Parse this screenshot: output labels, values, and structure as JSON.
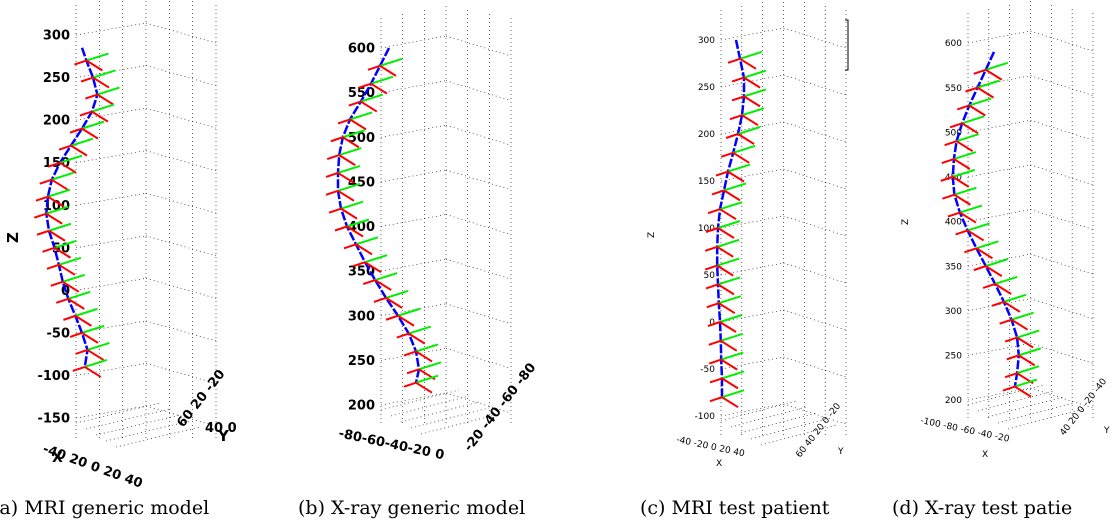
{
  "chart_data": [
    {
      "type": "3d-line",
      "caption": "(a) MRI generic model",
      "zlabel": "Z",
      "xlabel": "X",
      "ylabel": "Y",
      "z_ticks": [
        "300",
        "250",
        "200",
        "150",
        "100",
        "50",
        "0",
        "-50",
        "-100",
        "-150"
      ],
      "zlim": [
        -150,
        300
      ],
      "x_tick_text": "-40 20  0 20 40",
      "y_tick_text": "60 20 -20",
      "y_tick_extra": "40 0",
      "series": {
        "points": [
          {
            "z": 285,
            "d": 0.0
          },
          {
            "z": 270,
            "d": 0.08
          },
          {
            "z": 250,
            "d": 0.2
          },
          {
            "z": 230,
            "d": 0.28
          },
          {
            "z": 210,
            "d": 0.18
          },
          {
            "z": 190,
            "d": 0.0
          },
          {
            "z": 170,
            "d": -0.2
          },
          {
            "z": 150,
            "d": -0.4
          },
          {
            "z": 130,
            "d": -0.55
          },
          {
            "z": 110,
            "d": -0.62
          },
          {
            "z": 90,
            "d": -0.65
          },
          {
            "z": 70,
            "d": -0.6
          },
          {
            "z": 50,
            "d": -0.5
          },
          {
            "z": 30,
            "d": -0.42
          },
          {
            "z": 10,
            "d": -0.35
          },
          {
            "z": -10,
            "d": -0.25
          },
          {
            "z": -30,
            "d": -0.12
          },
          {
            "z": -50,
            "d": 0.0
          },
          {
            "z": -70,
            "d": 0.1
          },
          {
            "z": -90,
            "d": 0.05
          }
        ]
      }
    },
    {
      "type": "3d-line",
      "caption": "(b) X-ray generic model",
      "zlabel": "",
      "xlabel": "",
      "ylabel": "",
      "z_ticks": [
        "600",
        "550",
        "500",
        "450",
        "400",
        "350",
        "300",
        "250",
        "200"
      ],
      "zlim": [
        200,
        600
      ],
      "x_tick_text": "-80-60-40-20  0",
      "y_tick_text": "-20 -40 -60 -80",
      "y_tick_extra": "",
      "series": {
        "points": [
          {
            "z": 600,
            "d": 0.35
          },
          {
            "z": 580,
            "d": 0.2
          },
          {
            "z": 560,
            "d": 0.05
          },
          {
            "z": 540,
            "d": -0.12
          },
          {
            "z": 520,
            "d": -0.3
          },
          {
            "z": 500,
            "d": -0.42
          },
          {
            "z": 480,
            "d": -0.48
          },
          {
            "z": 460,
            "d": -0.5
          },
          {
            "z": 440,
            "d": -0.5
          },
          {
            "z": 420,
            "d": -0.45
          },
          {
            "z": 400,
            "d": -0.35
          },
          {
            "z": 380,
            "d": -0.2
          },
          {
            "z": 360,
            "d": -0.05
          },
          {
            "z": 340,
            "d": 0.12
          },
          {
            "z": 320,
            "d": 0.3
          },
          {
            "z": 300,
            "d": 0.5
          },
          {
            "z": 280,
            "d": 0.68
          },
          {
            "z": 260,
            "d": 0.8
          },
          {
            "z": 240,
            "d": 0.85
          },
          {
            "z": 225,
            "d": 0.8
          }
        ]
      }
    },
    {
      "type": "3d-line",
      "caption": "(c) MRI test patient",
      "zlabel": "Z",
      "xlabel": "X",
      "ylabel": "Y",
      "z_ticks": [
        "300",
        "250",
        "200",
        "150",
        "100",
        "50",
        "0",
        "-50",
        "-100"
      ],
      "zlim": [
        -100,
        300
      ],
      "x_tick_text": "-40 -20  0  20  40",
      "y_tick_text": "60 40 20 0 -20",
      "y_tick_extra": "",
      "series": {
        "points": [
          {
            "z": 300,
            "d": 0.35
          },
          {
            "z": 280,
            "d": 0.45
          },
          {
            "z": 260,
            "d": 0.55
          },
          {
            "z": 240,
            "d": 0.55
          },
          {
            "z": 220,
            "d": 0.5
          },
          {
            "z": 200,
            "d": 0.4
          },
          {
            "z": 180,
            "d": 0.28
          },
          {
            "z": 160,
            "d": 0.15
          },
          {
            "z": 140,
            "d": 0.05
          },
          {
            "z": 120,
            "d": -0.05
          },
          {
            "z": 100,
            "d": -0.1
          },
          {
            "z": 80,
            "d": -0.12
          },
          {
            "z": 60,
            "d": -0.12
          },
          {
            "z": 40,
            "d": -0.1
          },
          {
            "z": 20,
            "d": -0.08
          },
          {
            "z": 0,
            "d": -0.05
          },
          {
            "z": -20,
            "d": -0.03
          },
          {
            "z": -40,
            "d": -0.02
          },
          {
            "z": -60,
            "d": 0.0
          },
          {
            "z": -80,
            "d": 0.0
          }
        ]
      }
    },
    {
      "type": "3d-line",
      "caption": "(d) X-ray test patie",
      "zlabel": "Z",
      "xlabel": "X",
      "ylabel": "Y",
      "z_ticks": [
        "600",
        "550",
        "500",
        "450",
        "400",
        "350",
        "300",
        "250",
        "200"
      ],
      "zlim": [
        200,
        600
      ],
      "x_tick_text": "-100 -80 -60 -40 -20",
      "y_tick_text": "40 20 0 -20 -40",
      "y_tick_extra": "",
      "series": {
        "points": [
          {
            "z": 590,
            "d": 0.4
          },
          {
            "z": 570,
            "d": 0.25
          },
          {
            "z": 550,
            "d": 0.1
          },
          {
            "z": 530,
            "d": -0.05
          },
          {
            "z": 510,
            "d": -0.18
          },
          {
            "z": 490,
            "d": -0.28
          },
          {
            "z": 470,
            "d": -0.33
          },
          {
            "z": 450,
            "d": -0.35
          },
          {
            "z": 430,
            "d": -0.32
          },
          {
            "z": 410,
            "d": -0.22
          },
          {
            "z": 390,
            "d": -0.08
          },
          {
            "z": 370,
            "d": 0.08
          },
          {
            "z": 350,
            "d": 0.25
          },
          {
            "z": 330,
            "d": 0.42
          },
          {
            "z": 310,
            "d": 0.58
          },
          {
            "z": 290,
            "d": 0.72
          },
          {
            "z": 270,
            "d": 0.82
          },
          {
            "z": 250,
            "d": 0.85
          },
          {
            "z": 230,
            "d": 0.82
          },
          {
            "z": 215,
            "d": 0.78
          }
        ]
      }
    }
  ],
  "colors": {
    "spine_line": "#0000ff",
    "local_axis_x": "#ff0000",
    "local_axis_y": "#00ee00",
    "grid": "#000000"
  }
}
